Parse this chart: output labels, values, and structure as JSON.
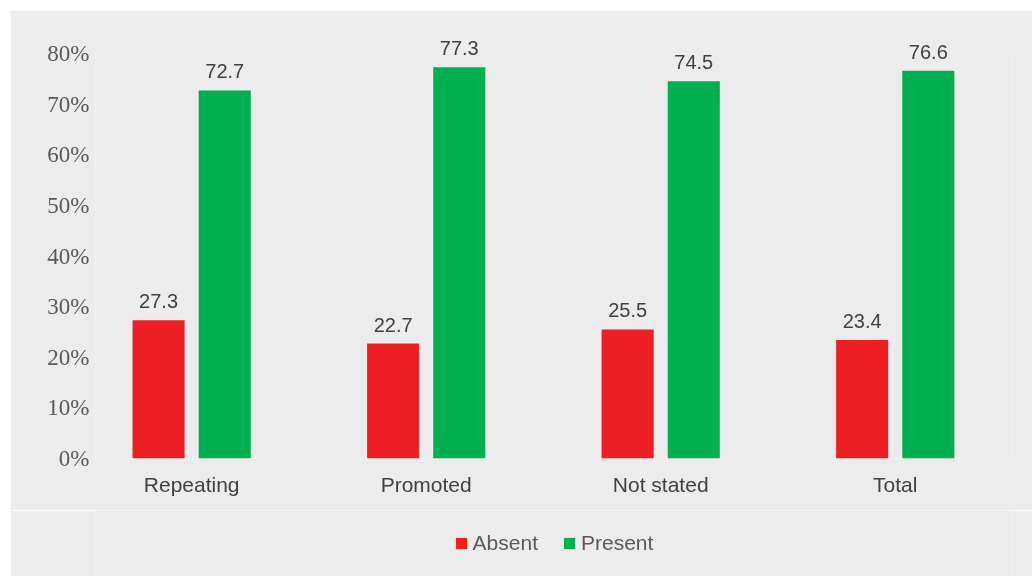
{
  "chart_data": {
    "type": "bar",
    "categories": [
      "Repeating",
      "Promoted",
      "Not stated",
      "Total"
    ],
    "series": [
      {
        "name": "Absent",
        "color": "#ed1f24",
        "values": [
          27.3,
          22.7,
          25.5,
          23.4
        ]
      },
      {
        "name": "Present",
        "color": "#00b050",
        "values": [
          72.7,
          77.3,
          74.5,
          76.6
        ]
      }
    ],
    "ylim": [
      0,
      80
    ],
    "yticks": [
      {
        "value": 0,
        "label": "0%"
      },
      {
        "value": 10,
        "label": "10%"
      },
      {
        "value": 20,
        "label": "20%"
      },
      {
        "value": 30,
        "label": "30%"
      },
      {
        "value": 40,
        "label": "40%"
      },
      {
        "value": 50,
        "label": "50%"
      },
      {
        "value": 60,
        "label": "60%"
      },
      {
        "value": 70,
        "label": "70%"
      },
      {
        "value": 80,
        "label": "80%"
      }
    ],
    "data_labels": true,
    "legend": "bottom"
  }
}
